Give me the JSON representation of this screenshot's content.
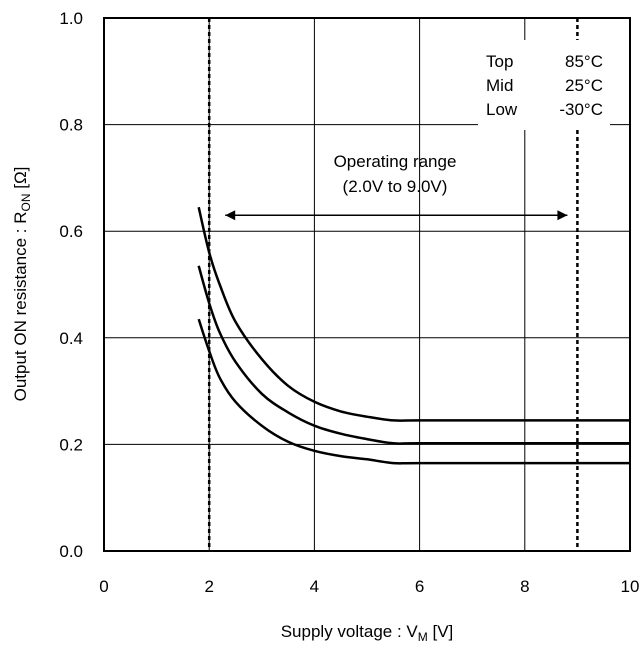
{
  "chart_data": {
    "type": "line",
    "xlabel": "Supply voltage : V",
    "xlabel_sub": "M",
    "xlabel_unit": " [V]",
    "ylabel": "Output ON resistance : R",
    "ylabel_sub": "ON",
    "ylabel_unit": " [Ω]",
    "xlim": [
      0,
      10
    ],
    "ylim": [
      0.0,
      1.0
    ],
    "xticks": [
      0,
      2,
      4,
      6,
      8,
      10
    ],
    "yticks": [
      0.0,
      0.2,
      0.4,
      0.6,
      0.8,
      1.0
    ],
    "xtick_labels": [
      "0",
      "2",
      "4",
      "6",
      "8",
      "10"
    ],
    "ytick_labels": [
      "0.0",
      "0.2",
      "0.4",
      "0.6",
      "0.8",
      "1.0"
    ],
    "grid": true,
    "series": [
      {
        "x": [
          1.8,
          2.0,
          2.2,
          2.5,
          3.0,
          3.5,
          4.0,
          4.5,
          5.0,
          5.5,
          6.0,
          8.0,
          10.0
        ],
        "y": [
          0.645,
          0.56,
          0.5,
          0.43,
          0.36,
          0.31,
          0.28,
          0.262,
          0.252,
          0.245,
          0.245,
          0.245,
          0.245
        ]
      },
      {
        "x": [
          1.8,
          2.0,
          2.2,
          2.5,
          3.0,
          3.5,
          4.0,
          4.5,
          5.0,
          5.5,
          6.0,
          8.0,
          10.0
        ],
        "y": [
          0.535,
          0.465,
          0.41,
          0.355,
          0.295,
          0.26,
          0.235,
          0.22,
          0.21,
          0.202,
          0.202,
          0.202,
          0.202
        ]
      },
      {
        "x": [
          1.8,
          2.0,
          2.2,
          2.5,
          3.0,
          3.5,
          4.0,
          4.5,
          5.0,
          5.5,
          6.0,
          8.0,
          10.0
        ],
        "y": [
          0.435,
          0.375,
          0.325,
          0.28,
          0.235,
          0.205,
          0.188,
          0.178,
          0.172,
          0.165,
          0.165,
          0.165,
          0.165
        ]
      }
    ],
    "vlines": [
      2.0,
      9.0
    ],
    "arrow": {
      "x_start": 2.0,
      "x_end": 9.0,
      "y": 0.63
    },
    "annotation": {
      "line1": "Operating range",
      "line2": "(2.0V to 9.0V)"
    },
    "legend": {
      "position": "top-right",
      "rows": [
        {
          "label": "Top",
          "value": "85°C"
        },
        {
          "label": "Mid",
          "value": "25°C"
        },
        {
          "label": "Low",
          "value": "-30°C"
        }
      ]
    }
  }
}
